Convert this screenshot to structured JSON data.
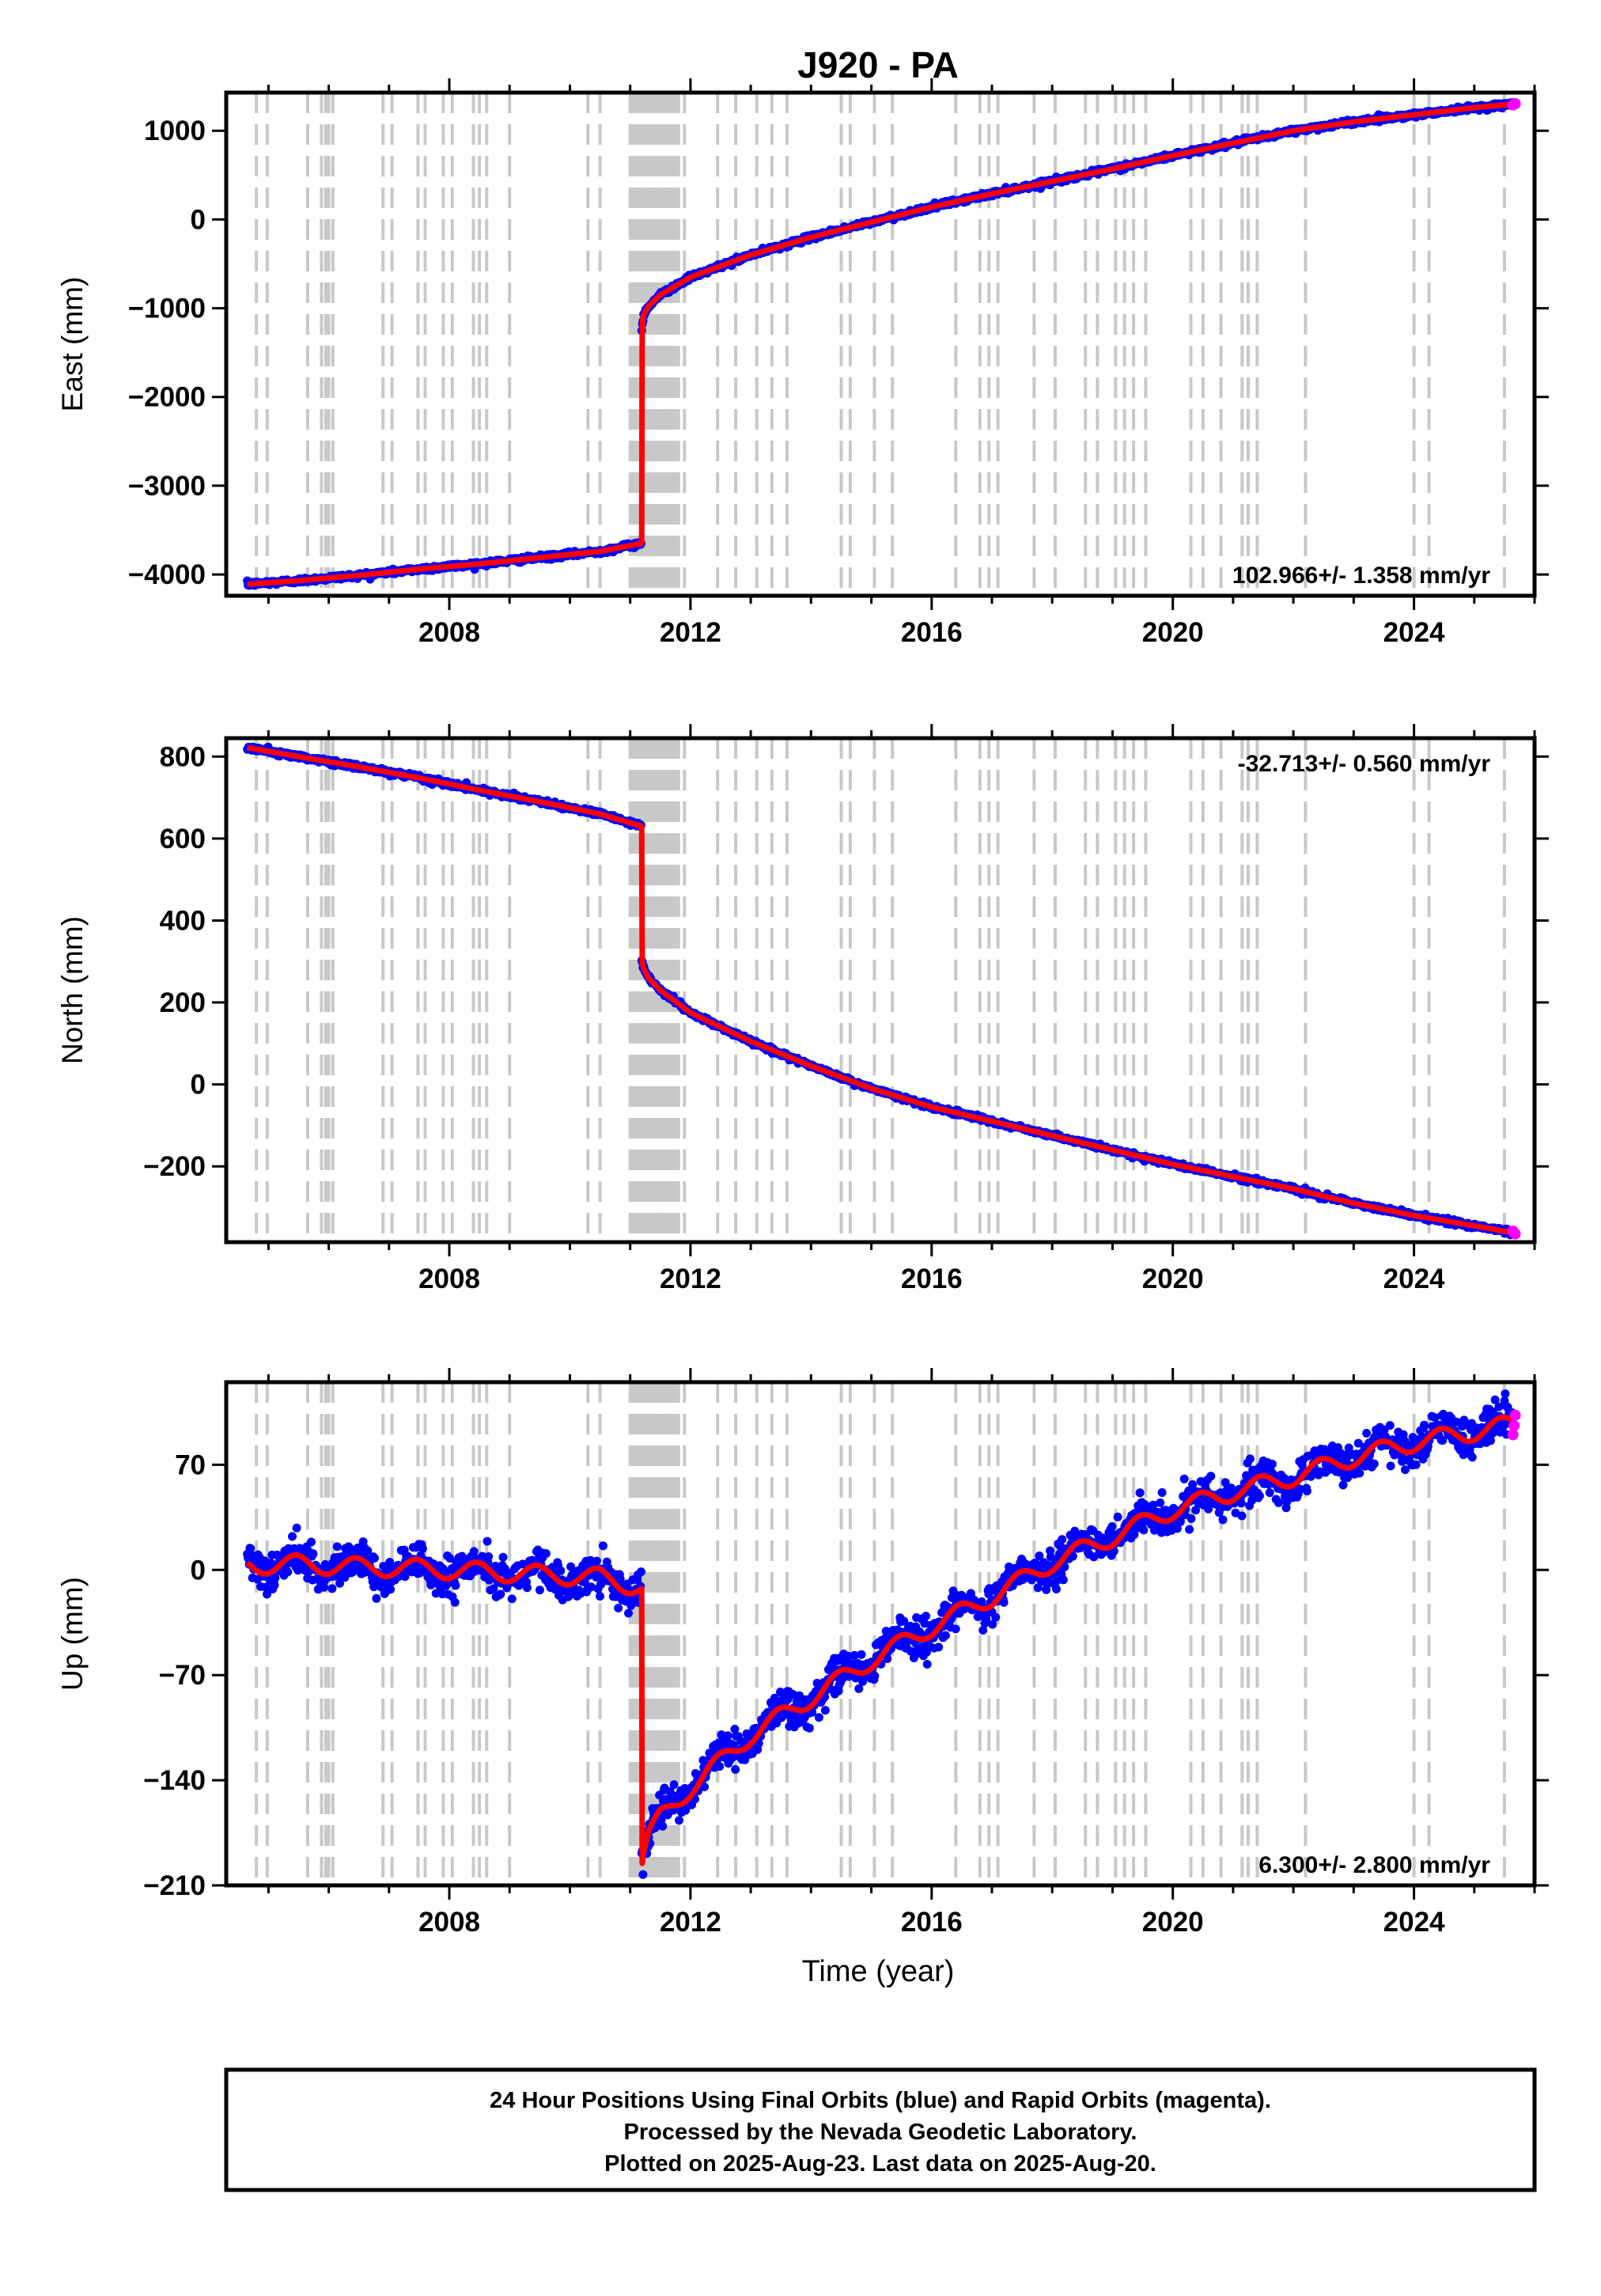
{
  "chart_data": {
    "title": "J920 - PA",
    "x_axis": {
      "label": "Time (year)",
      "range": [
        2004.3,
        2026.0
      ],
      "ticks": [
        2008,
        2012,
        2016,
        2020,
        2024
      ],
      "tick_labels": [
        "2008",
        "2012",
        "2016",
        "2020",
        "2024"
      ]
    },
    "event_lines_year": [
      2004.8,
      2004.98,
      2005.65,
      2005.88,
      2005.95,
      2006.0,
      2006.07,
      2006.9,
      2007.05,
      2007.48,
      2007.6,
      2007.9,
      2008.05,
      2008.4,
      2008.5,
      2008.62,
      2009.0,
      2010.3,
      2010.5,
      2011.0,
      2011.05,
      2011.1,
      2011.15,
      2011.2,
      2011.25,
      2011.3,
      2011.35,
      2011.4,
      2011.45,
      2011.5,
      2011.55,
      2011.6,
      2011.65,
      2011.7,
      2011.75,
      2011.8,
      2011.9,
      2012.45,
      2012.75,
      2013.1,
      2013.35,
      2013.6,
      2014.5,
      2014.65,
      2015.05,
      2015.35,
      2016.4,
      2016.8,
      2016.95,
      2017.1,
      2017.7,
      2018.05,
      2018.55,
      2018.75,
      2019.05,
      2019.2,
      2019.35,
      2019.55,
      2020.3,
      2020.5,
      2020.8,
      2021.15,
      2021.25,
      2021.4,
      2022.2,
      2024.0,
      2024.25,
      2025.5
    ],
    "panels": [
      {
        "type": "scatter",
        "ylabel": "East (mm)",
        "y_range": [
          -4240,
          1430
        ],
        "yticks": [
          1000,
          0,
          -1000,
          -2000,
          -3000,
          -4000
        ],
        "ytick_labels": [
          "1000",
          "0",
          "−1000",
          "−2000",
          "−3000",
          "−4000"
        ],
        "rate_label": "102.966+/- 1.358 mm/yr",
        "rate_position": "bottom-right",
        "noise_mm": 14,
        "series_points": {
          "x": [
            2004.65,
            2005.5,
            2006.5,
            2007.5,
            2008.5,
            2009.5,
            2010.5,
            2011.19,
            2011.19,
            2011.22,
            2011.3,
            2011.5,
            2012.0,
            2013.0,
            2014.0,
            2015.0,
            2016.0,
            2017.0,
            2018.0,
            2019.0,
            2020.0,
            2021.0,
            2022.0,
            2023.0,
            2024.0,
            2025.0,
            2025.64
          ],
          "y": [
            -4110,
            -4070,
            -4010,
            -3940,
            -3880,
            -3810,
            -3740,
            -3650,
            -1250,
            -1080,
            -980,
            -850,
            -650,
            -400,
            -200,
            -30,
            140,
            290,
            430,
            570,
            720,
            860,
            1000,
            1100,
            1180,
            1260,
            1300
          ]
        },
        "rapid_orbit_values": [
          1290,
          1300,
          1305
        ]
      },
      {
        "type": "scatter",
        "ylabel": "North (mm)",
        "y_range": [
          -385,
          845
        ],
        "yticks": [
          800,
          600,
          400,
          200,
          0,
          -200
        ],
        "ytick_labels": [
          "800",
          "600",
          "400",
          "200",
          "0",
          "−200"
        ],
        "rate_label": "-32.713+/- 0.560 mm/yr",
        "rate_position": "top-right",
        "noise_mm": 3,
        "series_points": {
          "x": [
            2004.65,
            2005.5,
            2006.5,
            2007.5,
            2008.5,
            2009.5,
            2010.5,
            2011.19,
            2011.19,
            2011.22,
            2011.3,
            2011.5,
            2012.0,
            2013.0,
            2014.0,
            2015.0,
            2016.0,
            2017.0,
            2018.0,
            2019.0,
            2020.0,
            2021.0,
            2022.0,
            2023.0,
            2024.0,
            2025.0,
            2025.64
          ],
          "y": [
            822,
            800,
            775,
            748,
            718,
            690,
            660,
            630,
            305,
            285,
            260,
            230,
            175,
            105,
            45,
            -10,
            -55,
            -90,
            -125,
            -160,
            -195,
            -225,
            -255,
            -290,
            -320,
            -345,
            -362
          ]
        },
        "rapid_orbit_values": [
          -358,
          -362,
          -365
        ]
      },
      {
        "type": "scatter",
        "ylabel": "Up (mm)",
        "y_range": [
          -210,
          125
        ],
        "yticks": [
          70,
          0,
          -70,
          -140,
          -210
        ],
        "ytick_labels": [
          "70",
          "0",
          "−70",
          "−140",
          "−210"
        ],
        "rate_label": "6.300+/- 2.800 mm/yr",
        "rate_position": "bottom-right",
        "noise_mm": 6,
        "seasonal_mm": 6,
        "series_points": {
          "x": [
            2004.65,
            2005.5,
            2006.5,
            2007.5,
            2008.5,
            2009.5,
            2010.5,
            2011.19,
            2011.19,
            2011.22,
            2011.3,
            2011.5,
            2012.0,
            2013.0,
            2014.0,
            2015.0,
            2016.0,
            2017.0,
            2018.0,
            2019.0,
            2020.0,
            2021.0,
            2022.0,
            2023.0,
            2024.0,
            2025.0,
            2025.64
          ],
          "y": [
            3,
            4,
            2,
            1,
            -1,
            -3,
            -5,
            -12,
            -198,
            -190,
            -178,
            -165,
            -145,
            -110,
            -85,
            -60,
            -38,
            -18,
            5,
            22,
            40,
            52,
            62,
            75,
            85,
            92,
            97
          ]
        },
        "rapid_orbit_values": [
          90,
          96,
          103
        ]
      }
    ],
    "legend": {
      "final_orbits_color": "#0000ff",
      "rapid_orbits_color": "#ff00ff",
      "model_color": "#ff0000",
      "event_line_color": "#c8c8c8"
    }
  },
  "footer": {
    "line1": "24 Hour Positions Using Final Orbits (blue) and Rapid Orbits (magenta).",
    "line2": "Processed by the Nevada Geodetic Laboratory.",
    "line3": "Plotted on 2025-Aug-23. Last data on 2025-Aug-20."
  }
}
